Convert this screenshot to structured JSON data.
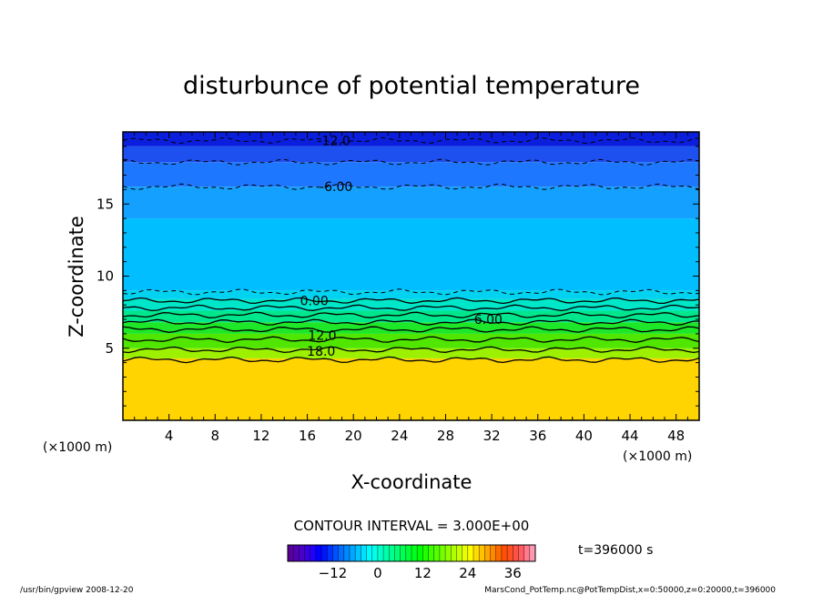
{
  "chart_data": {
    "type": "contour",
    "title": "disturbunce of potential temperature",
    "xlabel": "X-coordinate",
    "ylabel": "Z-coordinate",
    "x_unit_left": "(×1000 m)",
    "x_unit_right": "(×1000 m)",
    "xlim": [
      0,
      50
    ],
    "ylim": [
      0,
      20
    ],
    "x_ticks": [
      4,
      8,
      12,
      16,
      20,
      24,
      28,
      32,
      36,
      40,
      44,
      48
    ],
    "y_ticks": [
      5,
      10,
      15
    ],
    "contour_interval_label": "CONTOUR INTERVAL = 3.000E+00",
    "time_label": "t=396000 s",
    "bands": [
      {
        "z0": 0,
        "z1": 4.3,
        "color": "#ffd400"
      },
      {
        "z0": 4.3,
        "z1": 5.0,
        "color": "#9cf000"
      },
      {
        "z0": 5.0,
        "z1": 6.0,
        "color": "#50e600"
      },
      {
        "z0": 6.0,
        "z1": 6.8,
        "color": "#1ee628"
      },
      {
        "z0": 6.8,
        "z1": 7.6,
        "color": "#00e68c"
      },
      {
        "z0": 7.6,
        "z1": 8.4,
        "color": "#00e6c8"
      },
      {
        "z0": 8.4,
        "z1": 9.0,
        "color": "#00d2f0"
      },
      {
        "z0": 9.0,
        "z1": 14.0,
        "color": "#00beff"
      },
      {
        "z0": 14.0,
        "z1": 16.2,
        "color": "#14a0ff"
      },
      {
        "z0": 16.2,
        "z1": 17.9,
        "color": "#1e78ff"
      },
      {
        "z0": 17.9,
        "z1": 19.0,
        "color": "#1e50f0"
      },
      {
        "z0": 19.0,
        "z1": 20.0,
        "color": "#0a1edc"
      }
    ],
    "contours": [
      {
        "z": 19.4,
        "dashed": true
      },
      {
        "z": 17.9,
        "dashed": true
      },
      {
        "z": 16.2,
        "dashed": true
      },
      {
        "z": 8.9,
        "dashed": true
      },
      {
        "z": 8.3,
        "dashed": false
      },
      {
        "z": 7.8,
        "dashed": false
      },
      {
        "z": 7.3,
        "dashed": false
      },
      {
        "z": 6.8,
        "dashed": false
      },
      {
        "z": 6.3,
        "dashed": false
      },
      {
        "z": 5.6,
        "dashed": false
      },
      {
        "z": 4.9,
        "dashed": false
      },
      {
        "z": 4.2,
        "dashed": false
      }
    ],
    "contour_labels": [
      {
        "text": "-12.0",
        "x": 18.3,
        "z": 19.4
      },
      {
        "text": "-6.00",
        "x": 18.5,
        "z": 16.2
      },
      {
        "text": "0.00",
        "x": 16.6,
        "z": 8.3
      },
      {
        "text": "6.00",
        "x": 31.7,
        "z": 7.0
      },
      {
        "text": "12.0",
        "x": 17.3,
        "z": 5.9
      },
      {
        "text": "18.0",
        "x": 17.2,
        "z": 4.8
      }
    ],
    "colorbar": {
      "min": -24,
      "max": 42,
      "step": 1.5,
      "ticks": [
        -12,
        0,
        12,
        24,
        36
      ]
    }
  },
  "footer": {
    "left": "/usr/bin/gpview   2008-12-20",
    "right": "MarsCond_PotTemp.nc@PotTempDist,x=0:50000,z=0:20000,t=396000"
  }
}
